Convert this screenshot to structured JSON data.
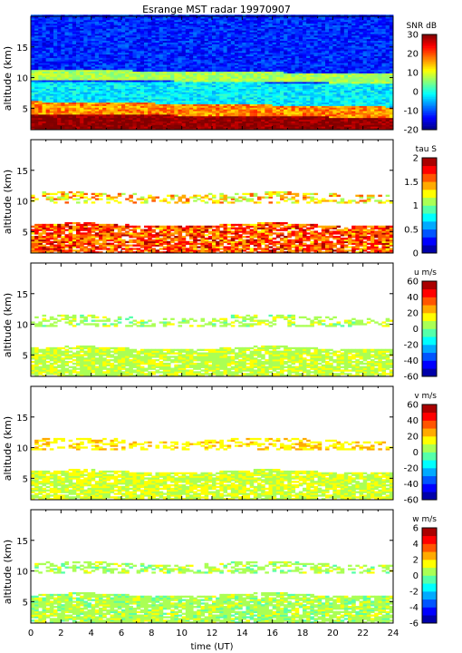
{
  "title": "Esrange MST radar 19970907",
  "xlabel": "time (UT)",
  "x_ticks": [
    "0",
    "2",
    "4",
    "6",
    "8",
    "10",
    "12",
    "14",
    "16",
    "18",
    "20",
    "22",
    "24"
  ],
  "chart_data": [
    {
      "type": "heatmap",
      "title": "Esrange MST radar 19970907",
      "variable": "SNR",
      "colorbar_label": "SNR dB",
      "clim": [
        -20,
        30
      ],
      "colorbar_ticks": [
        "30",
        "20",
        "10",
        "0",
        "-10",
        "-20"
      ],
      "ylabel": "altitude (km)",
      "xlabel": "",
      "xlim": [
        0,
        24
      ],
      "ylim": [
        1.5,
        20
      ],
      "y_ticks": [
        "15",
        "10",
        "5"
      ],
      "description_bands": [
        {
          "alt_range": [
            1.5,
            4
          ],
          "value": 25
        },
        {
          "alt_range": [
            4,
            6
          ],
          "value": 15
        },
        {
          "alt_range": [
            6,
            9.5
          ],
          "value": -5
        },
        {
          "alt_range": [
            9.5,
            11.5
          ],
          "value": 5
        },
        {
          "alt_range": [
            11.5,
            20
          ],
          "value": -15
        }
      ]
    },
    {
      "type": "heatmap",
      "variable": "tau",
      "colorbar_label": "tau S",
      "clim": [
        0,
        2
      ],
      "colorbar_ticks": [
        "2",
        "1.5",
        "1",
        "0.5",
        "0"
      ],
      "ylabel": "altitude (km)",
      "xlim": [
        0,
        24
      ],
      "ylim": [
        1.5,
        20
      ],
      "y_ticks": [
        "15",
        "10",
        "5"
      ],
      "description_bands": [
        {
          "alt_range": [
            1.5,
            6
          ],
          "value": 1.9
        },
        {
          "alt_range": [
            9.5,
            11.2
          ],
          "value": 1.6
        }
      ]
    },
    {
      "type": "heatmap",
      "variable": "u",
      "colorbar_label": "u m/s",
      "clim": [
        -60,
        60
      ],
      "colorbar_ticks": [
        "60",
        "40",
        "20",
        "0",
        "-20",
        "-40",
        "-60"
      ],
      "ylabel": "altitude (km)",
      "xlim": [
        0,
        24
      ],
      "ylim": [
        1.5,
        20
      ],
      "y_ticks": [
        "15",
        "10",
        "5"
      ],
      "description_bands": [
        {
          "alt_range": [
            1.5,
            6
          ],
          "value": 8
        },
        {
          "alt_range": [
            9.5,
            11.2
          ],
          "value": 5
        }
      ]
    },
    {
      "type": "heatmap",
      "variable": "v",
      "colorbar_label": "v m/s",
      "clim": [
        -60,
        60
      ],
      "colorbar_ticks": [
        "60",
        "40",
        "20",
        "0",
        "-20",
        "-40",
        "-60"
      ],
      "ylabel": "altitude (km)",
      "xlim": [
        0,
        24
      ],
      "ylim": [
        1.5,
        20
      ],
      "y_ticks": [
        "15",
        "10",
        "5"
      ],
      "description_bands": [
        {
          "alt_range": [
            1.5,
            6
          ],
          "value": 10
        },
        {
          "alt_range": [
            9.5,
            11.2
          ],
          "value": 18
        }
      ]
    },
    {
      "type": "heatmap",
      "variable": "w",
      "colorbar_label": "w m/s",
      "clim": [
        -6,
        6
      ],
      "colorbar_ticks": [
        "6",
        "4",
        "2",
        "0",
        "-2",
        "-4",
        "-6"
      ],
      "ylabel": "altitude (km)",
      "xlabel": "time (UT)",
      "xlim": [
        0,
        24
      ],
      "ylim": [
        1.5,
        20
      ],
      "y_ticks": [
        "15",
        "10",
        "5"
      ],
      "description_bands": [
        {
          "alt_range": [
            1.5,
            6
          ],
          "value": 0.5
        },
        {
          "alt_range": [
            9.5,
            11.2
          ],
          "value": 0.5
        }
      ]
    }
  ]
}
